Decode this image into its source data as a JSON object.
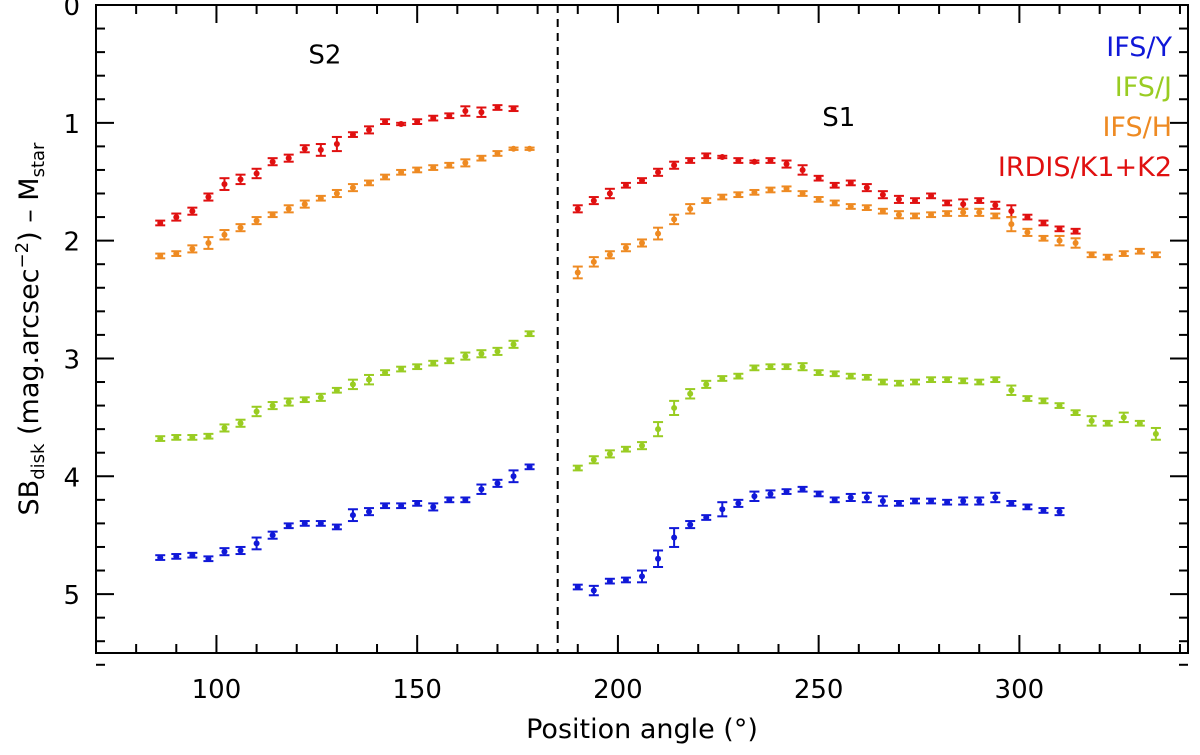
{
  "chart_data": {
    "type": "scatter",
    "xlabel": "Position angle (°)",
    "ylabel": {
      "prefix": "SB",
      "prefix_sub": "disk",
      "middle": " (mag.arcsec",
      "middle_sup": "−2",
      "suffix": ")  –  M",
      "suffix_sub": "star"
    },
    "xlim": [
      70,
      342
    ],
    "ylim": [
      5.5,
      0
    ],
    "y_inverted": true,
    "xticks": [
      100,
      150,
      200,
      250,
      300
    ],
    "yticks": [
      0,
      1,
      2,
      3,
      4,
      5
    ],
    "x_minor_step": 10,
    "y_minor_step": 0.2,
    "divider_x": 185,
    "annotations": [
      {
        "text": "S2",
        "x": 127,
        "y": 0.42
      },
      {
        "text": "S1",
        "x": 255,
        "y": 0.95
      }
    ],
    "legend_position": "top-right",
    "series": [
      {
        "name": "IRDIS/K1+K2",
        "color": "#e01010",
        "points": [
          [
            86,
            1.85,
            0.02
          ],
          [
            90,
            1.8,
            0.03
          ],
          [
            94,
            1.75,
            0.03
          ],
          [
            98,
            1.63,
            0.03
          ],
          [
            102,
            1.52,
            0.05
          ],
          [
            106,
            1.48,
            0.04
          ],
          [
            110,
            1.43,
            0.04
          ],
          [
            114,
            1.33,
            0.03
          ],
          [
            118,
            1.3,
            0.03
          ],
          [
            122,
            1.22,
            0.03
          ],
          [
            126,
            1.23,
            0.05
          ],
          [
            130,
            1.18,
            0.06
          ],
          [
            134,
            1.1,
            0.02
          ],
          [
            138,
            1.06,
            0.03
          ],
          [
            142,
            0.99,
            0.02
          ],
          [
            146,
            1.01,
            0.01
          ],
          [
            150,
            0.99,
            0.02
          ],
          [
            154,
            0.96,
            0.02
          ],
          [
            158,
            0.94,
            0.02
          ],
          [
            162,
            0.9,
            0.04
          ],
          [
            166,
            0.91,
            0.04
          ],
          [
            170,
            0.87,
            0.02
          ],
          [
            174,
            0.88,
            0.02
          ],
          [
            190,
            1.73,
            0.03
          ],
          [
            194,
            1.66,
            0.03
          ],
          [
            198,
            1.6,
            0.04
          ],
          [
            202,
            1.53,
            0.02
          ],
          [
            206,
            1.49,
            0.02
          ],
          [
            210,
            1.42,
            0.03
          ],
          [
            214,
            1.36,
            0.03
          ],
          [
            218,
            1.32,
            0.02
          ],
          [
            222,
            1.28,
            0.02
          ],
          [
            226,
            1.29,
            0.01
          ],
          [
            230,
            1.32,
            0.02
          ],
          [
            234,
            1.33,
            0.01
          ],
          [
            238,
            1.32,
            0.02
          ],
          [
            242,
            1.35,
            0.03
          ],
          [
            246,
            1.4,
            0.04
          ],
          [
            250,
            1.47,
            0.02
          ],
          [
            254,
            1.53,
            0.02
          ],
          [
            258,
            1.51,
            0.02
          ],
          [
            262,
            1.55,
            0.03
          ],
          [
            266,
            1.61,
            0.03
          ],
          [
            270,
            1.65,
            0.03
          ],
          [
            274,
            1.66,
            0.02
          ],
          [
            278,
            1.62,
            0.02
          ],
          [
            282,
            1.68,
            0.02
          ],
          [
            286,
            1.69,
            0.04
          ],
          [
            290,
            1.66,
            0.02
          ],
          [
            294,
            1.7,
            0.03
          ],
          [
            298,
            1.75,
            0.05
          ],
          [
            302,
            1.8,
            0.02
          ],
          [
            306,
            1.85,
            0.02
          ],
          [
            310,
            1.9,
            0.02
          ],
          [
            314,
            1.92,
            0.02
          ]
        ]
      },
      {
        "name": "IFS/H",
        "color": "#ee8a22",
        "points": [
          [
            86,
            2.13,
            0.02
          ],
          [
            90,
            2.11,
            0.02
          ],
          [
            94,
            2.07,
            0.03
          ],
          [
            98,
            2.02,
            0.05
          ],
          [
            102,
            1.95,
            0.04
          ],
          [
            106,
            1.89,
            0.03
          ],
          [
            110,
            1.83,
            0.03
          ],
          [
            114,
            1.78,
            0.02
          ],
          [
            118,
            1.73,
            0.03
          ],
          [
            122,
            1.69,
            0.03
          ],
          [
            126,
            1.64,
            0.02
          ],
          [
            130,
            1.6,
            0.03
          ],
          [
            134,
            1.55,
            0.03
          ],
          [
            138,
            1.51,
            0.02
          ],
          [
            142,
            1.46,
            0.02
          ],
          [
            146,
            1.42,
            0.02
          ],
          [
            150,
            1.4,
            0.02
          ],
          [
            154,
            1.38,
            0.02
          ],
          [
            158,
            1.36,
            0.02
          ],
          [
            162,
            1.34,
            0.03
          ],
          [
            166,
            1.3,
            0.02
          ],
          [
            170,
            1.26,
            0.02
          ],
          [
            174,
            1.22,
            0.01
          ],
          [
            178,
            1.22,
            0.01
          ],
          [
            190,
            2.27,
            0.05
          ],
          [
            194,
            2.18,
            0.04
          ],
          [
            198,
            2.12,
            0.03
          ],
          [
            202,
            2.06,
            0.03
          ],
          [
            206,
            2.02,
            0.03
          ],
          [
            210,
            1.94,
            0.05
          ],
          [
            214,
            1.82,
            0.04
          ],
          [
            218,
            1.73,
            0.04
          ],
          [
            222,
            1.66,
            0.02
          ],
          [
            226,
            1.63,
            0.02
          ],
          [
            230,
            1.61,
            0.02
          ],
          [
            234,
            1.59,
            0.02
          ],
          [
            238,
            1.57,
            0.02
          ],
          [
            242,
            1.56,
            0.02
          ],
          [
            246,
            1.6,
            0.02
          ],
          [
            250,
            1.65,
            0.02
          ],
          [
            254,
            1.68,
            0.02
          ],
          [
            258,
            1.71,
            0.02
          ],
          [
            262,
            1.72,
            0.02
          ],
          [
            266,
            1.75,
            0.02
          ],
          [
            270,
            1.78,
            0.03
          ],
          [
            274,
            1.79,
            0.02
          ],
          [
            278,
            1.78,
            0.02
          ],
          [
            282,
            1.77,
            0.02
          ],
          [
            286,
            1.76,
            0.03
          ],
          [
            290,
            1.76,
            0.03
          ],
          [
            294,
            1.79,
            0.02
          ],
          [
            298,
            1.86,
            0.06
          ],
          [
            302,
            1.93,
            0.03
          ],
          [
            306,
            1.98,
            0.02
          ],
          [
            310,
            2.0,
            0.04
          ],
          [
            314,
            2.02,
            0.04
          ],
          [
            318,
            2.12,
            0.02
          ],
          [
            322,
            2.14,
            0.02
          ],
          [
            326,
            2.11,
            0.02
          ],
          [
            330,
            2.09,
            0.02
          ],
          [
            334,
            2.12,
            0.02
          ]
        ]
      },
      {
        "name": "IFS/J",
        "color": "#99cc22",
        "points": [
          [
            86,
            3.68,
            0.02
          ],
          [
            90,
            3.67,
            0.02
          ],
          [
            94,
            3.67,
            0.02
          ],
          [
            98,
            3.66,
            0.02
          ],
          [
            102,
            3.59,
            0.03
          ],
          [
            106,
            3.55,
            0.03
          ],
          [
            110,
            3.45,
            0.04
          ],
          [
            114,
            3.4,
            0.03
          ],
          [
            118,
            3.37,
            0.03
          ],
          [
            122,
            3.35,
            0.02
          ],
          [
            126,
            3.33,
            0.03
          ],
          [
            130,
            3.27,
            0.02
          ],
          [
            134,
            3.22,
            0.04
          ],
          [
            138,
            3.18,
            0.04
          ],
          [
            142,
            3.12,
            0.02
          ],
          [
            146,
            3.09,
            0.02
          ],
          [
            150,
            3.07,
            0.02
          ],
          [
            154,
            3.04,
            0.02
          ],
          [
            158,
            3.02,
            0.02
          ],
          [
            162,
            2.98,
            0.03
          ],
          [
            166,
            2.96,
            0.03
          ],
          [
            170,
            2.94,
            0.03
          ],
          [
            174,
            2.88,
            0.03
          ],
          [
            178,
            2.79,
            0.02
          ],
          [
            190,
            3.93,
            0.02
          ],
          [
            194,
            3.86,
            0.03
          ],
          [
            198,
            3.81,
            0.03
          ],
          [
            202,
            3.77,
            0.02
          ],
          [
            206,
            3.74,
            0.03
          ],
          [
            210,
            3.6,
            0.06
          ],
          [
            214,
            3.42,
            0.06
          ],
          [
            218,
            3.3,
            0.04
          ],
          [
            222,
            3.22,
            0.03
          ],
          [
            226,
            3.17,
            0.02
          ],
          [
            230,
            3.15,
            0.02
          ],
          [
            234,
            3.08,
            0.02
          ],
          [
            238,
            3.07,
            0.02
          ],
          [
            242,
            3.07,
            0.02
          ],
          [
            246,
            3.07,
            0.03
          ],
          [
            250,
            3.12,
            0.02
          ],
          [
            254,
            3.13,
            0.02
          ],
          [
            258,
            3.15,
            0.02
          ],
          [
            262,
            3.16,
            0.02
          ],
          [
            266,
            3.2,
            0.02
          ],
          [
            270,
            3.21,
            0.02
          ],
          [
            274,
            3.2,
            0.02
          ],
          [
            278,
            3.18,
            0.02
          ],
          [
            282,
            3.18,
            0.02
          ],
          [
            286,
            3.19,
            0.02
          ],
          [
            290,
            3.2,
            0.02
          ],
          [
            294,
            3.18,
            0.02
          ],
          [
            298,
            3.27,
            0.04
          ],
          [
            302,
            3.34,
            0.02
          ],
          [
            306,
            3.36,
            0.02
          ],
          [
            310,
            3.4,
            0.02
          ],
          [
            314,
            3.46,
            0.02
          ],
          [
            318,
            3.53,
            0.04
          ],
          [
            322,
            3.55,
            0.02
          ],
          [
            326,
            3.5,
            0.04
          ],
          [
            330,
            3.55,
            0.02
          ],
          [
            334,
            3.64,
            0.05
          ]
        ]
      },
      {
        "name": "IFS/Y",
        "color": "#1018d8",
        "points": [
          [
            86,
            4.69,
            0.02
          ],
          [
            90,
            4.68,
            0.02
          ],
          [
            94,
            4.67,
            0.02
          ],
          [
            98,
            4.7,
            0.02
          ],
          [
            102,
            4.64,
            0.03
          ],
          [
            106,
            4.63,
            0.03
          ],
          [
            110,
            4.57,
            0.05
          ],
          [
            114,
            4.5,
            0.03
          ],
          [
            118,
            4.42,
            0.02
          ],
          [
            122,
            4.4,
            0.02
          ],
          [
            126,
            4.4,
            0.02
          ],
          [
            130,
            4.43,
            0.02
          ],
          [
            134,
            4.33,
            0.05
          ],
          [
            138,
            4.3,
            0.03
          ],
          [
            142,
            4.25,
            0.02
          ],
          [
            146,
            4.25,
            0.02
          ],
          [
            150,
            4.23,
            0.02
          ],
          [
            154,
            4.26,
            0.03
          ],
          [
            158,
            4.2,
            0.02
          ],
          [
            162,
            4.2,
            0.02
          ],
          [
            166,
            4.11,
            0.04
          ],
          [
            170,
            4.06,
            0.03
          ],
          [
            174,
            4.0,
            0.05
          ],
          [
            178,
            3.92,
            0.02
          ],
          [
            190,
            4.94,
            0.02
          ],
          [
            194,
            4.97,
            0.04
          ],
          [
            198,
            4.89,
            0.02
          ],
          [
            202,
            4.88,
            0.02
          ],
          [
            206,
            4.85,
            0.05
          ],
          [
            210,
            4.7,
            0.07
          ],
          [
            214,
            4.52,
            0.08
          ],
          [
            218,
            4.41,
            0.03
          ],
          [
            222,
            4.35,
            0.02
          ],
          [
            226,
            4.28,
            0.06
          ],
          [
            230,
            4.23,
            0.03
          ],
          [
            234,
            4.17,
            0.04
          ],
          [
            238,
            4.15,
            0.03
          ],
          [
            242,
            4.13,
            0.02
          ],
          [
            246,
            4.11,
            0.02
          ],
          [
            250,
            4.15,
            0.02
          ],
          [
            254,
            4.2,
            0.02
          ],
          [
            258,
            4.18,
            0.03
          ],
          [
            262,
            4.18,
            0.04
          ],
          [
            266,
            4.21,
            0.04
          ],
          [
            270,
            4.23,
            0.02
          ],
          [
            274,
            4.21,
            0.02
          ],
          [
            278,
            4.21,
            0.02
          ],
          [
            282,
            4.22,
            0.02
          ],
          [
            286,
            4.21,
            0.03
          ],
          [
            290,
            4.21,
            0.03
          ],
          [
            294,
            4.18,
            0.04
          ],
          [
            298,
            4.23,
            0.02
          ],
          [
            302,
            4.26,
            0.02
          ],
          [
            306,
            4.29,
            0.02
          ],
          [
            310,
            4.3,
            0.03
          ]
        ]
      }
    ],
    "legend": [
      {
        "label": "IFS/Y",
        "color": "#1018d8"
      },
      {
        "label": "IFS/J",
        "color": "#99cc22"
      },
      {
        "label": "IFS/H",
        "color": "#ee8a22"
      },
      {
        "label": "IRDIS/K1+K2",
        "color": "#e01010"
      }
    ]
  }
}
